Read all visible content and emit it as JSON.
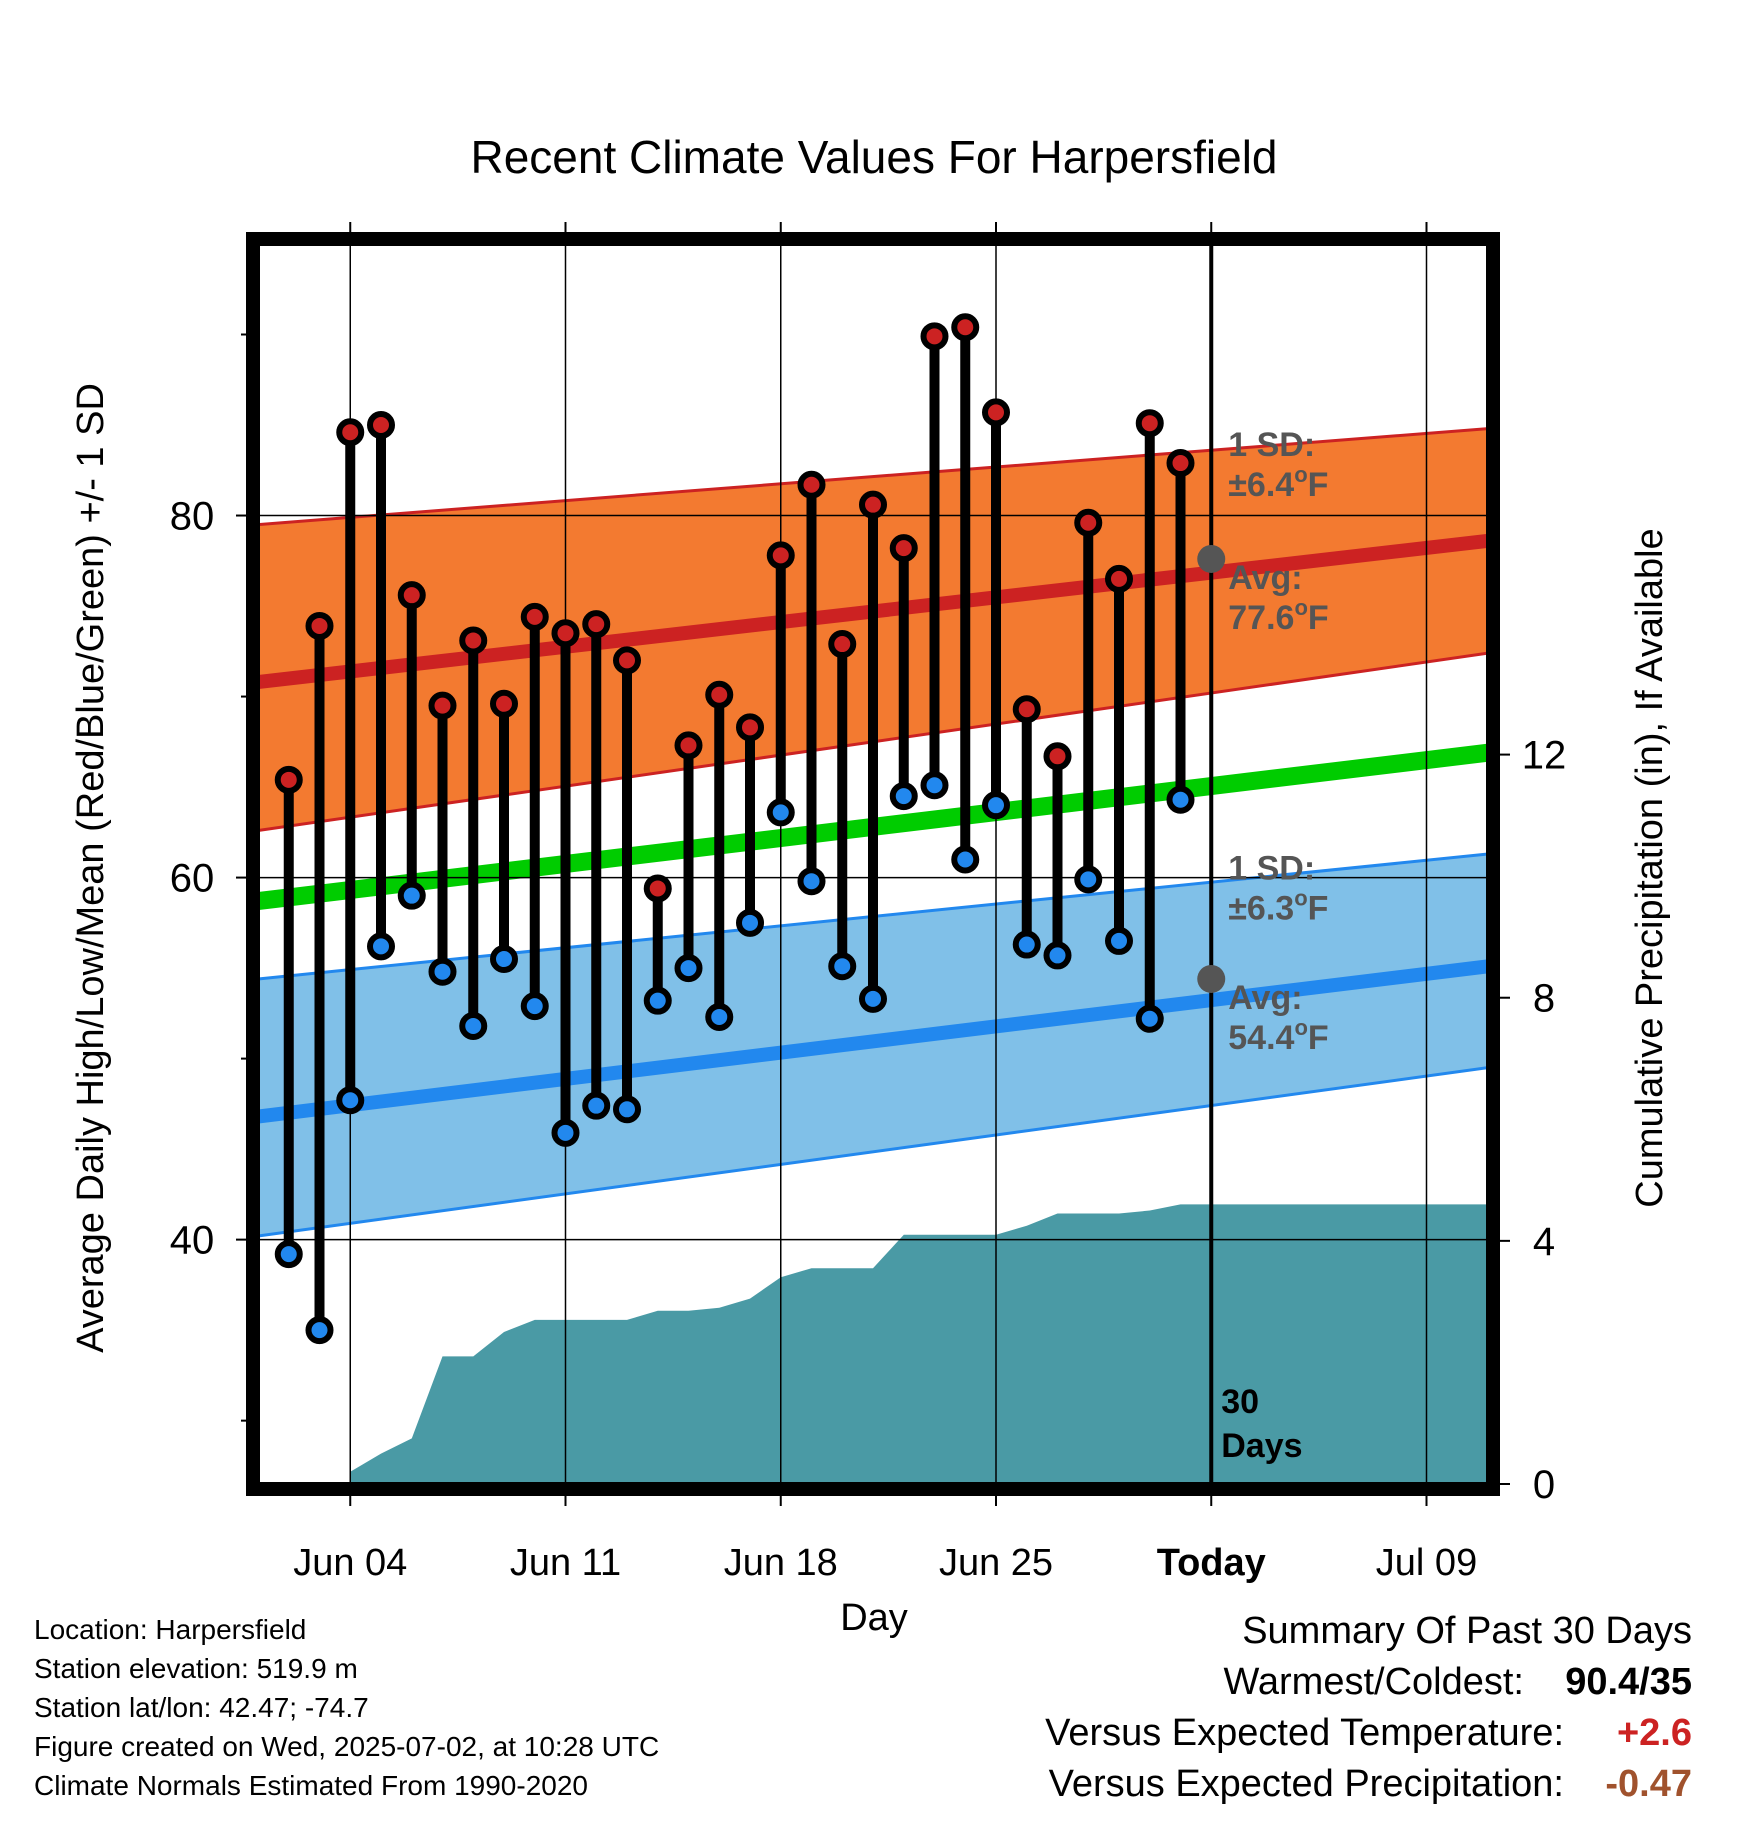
{
  "chart_data": {
    "type": "line",
    "title": "Recent Climate Values For Harpersfield",
    "xlabel": "Day",
    "ylabel": "Average Daily High/Low/Mean (Red/Blue/Green) +/- 1 SD",
    "y2label": "Cumulative Precipitation (in), If Available",
    "xlim": [
      "2025-06-01",
      "2025-07-11"
    ],
    "ylim": [
      26.5,
      95
    ],
    "y2lim": [
      0,
      20.4
    ],
    "x_ticks": [
      {
        "date": "2025-06-04",
        "label": "Jun 04"
      },
      {
        "date": "2025-06-11",
        "label": "Jun 11"
      },
      {
        "date": "2025-06-18",
        "label": "Jun 18"
      },
      {
        "date": "2025-06-25",
        "label": "Jun 25"
      },
      {
        "date": "2025-07-02",
        "label": "Today"
      },
      {
        "date": "2025-07-09",
        "label": "Jul 09"
      }
    ],
    "y_ticks": [
      40,
      60,
      80
    ],
    "y_minor_ticks": [
      30,
      50,
      70,
      90
    ],
    "y2_ticks": [
      0,
      4,
      8,
      12
    ],
    "grid": true,
    "today": {
      "date": "2025-07-02",
      "label": "30\nDays"
    },
    "series": [
      {
        "name": "High",
        "color": "#cc2222",
        "x": [
          "2025-06-02",
          "2025-06-03",
          "2025-06-04",
          "2025-06-05",
          "2025-06-06",
          "2025-06-07",
          "2025-06-08",
          "2025-06-09",
          "2025-06-10",
          "2025-06-11",
          "2025-06-12",
          "2025-06-13",
          "2025-06-14",
          "2025-06-15",
          "2025-06-16",
          "2025-06-17",
          "2025-06-18",
          "2025-06-19",
          "2025-06-20",
          "2025-06-21",
          "2025-06-22",
          "2025-06-23",
          "2025-06-24",
          "2025-06-25",
          "2025-06-26",
          "2025-06-27",
          "2025-06-28",
          "2025-06-29",
          "2025-06-30",
          "2025-07-01"
        ],
        "values": [
          65.4,
          73.9,
          84.6,
          85.0,
          75.6,
          69.5,
          73.1,
          69.6,
          74.4,
          73.5,
          74.0,
          72.0,
          59.4,
          67.3,
          70.1,
          68.3,
          77.8,
          81.7,
          72.9,
          80.6,
          78.2,
          89.9,
          90.4,
          85.7,
          69.3,
          66.7,
          79.6,
          76.5,
          85.1,
          82.9
        ]
      },
      {
        "name": "Low",
        "color": "#2288ee",
        "x": [
          "2025-06-02",
          "2025-06-03",
          "2025-06-04",
          "2025-06-05",
          "2025-06-06",
          "2025-06-07",
          "2025-06-08",
          "2025-06-09",
          "2025-06-10",
          "2025-06-11",
          "2025-06-12",
          "2025-06-13",
          "2025-06-14",
          "2025-06-15",
          "2025-06-16",
          "2025-06-17",
          "2025-06-18",
          "2025-06-19",
          "2025-06-20",
          "2025-06-21",
          "2025-06-22",
          "2025-06-23",
          "2025-06-24",
          "2025-06-25",
          "2025-06-26",
          "2025-06-27",
          "2025-06-28",
          "2025-06-29",
          "2025-06-30",
          "2025-07-01"
        ],
        "values": [
          39.2,
          35.0,
          47.7,
          56.2,
          59.0,
          54.8,
          51.8,
          55.5,
          52.9,
          45.9,
          47.4,
          47.2,
          53.2,
          55.0,
          52.3,
          57.5,
          63.6,
          59.8,
          55.1,
          53.3,
          64.5,
          65.1,
          61.0,
          64.0,
          56.3,
          55.7,
          59.9,
          56.5,
          52.2,
          64.3
        ]
      },
      {
        "name": "Normal High",
        "color": "#cc2222",
        "x": [
          "2025-06-01",
          "2025-07-11"
        ],
        "values": [
          70.8,
          78.6
        ],
        "sd_upper": [
          79.5,
          84.8
        ],
        "sd_lower": [
          62.6,
          72.4
        ],
        "band_color": "#f37a30"
      },
      {
        "name": "Normal Mean",
        "color": "#00cc00",
        "x": [
          "2025-06-01",
          "2025-07-11"
        ],
        "values": [
          58.7,
          66.9
        ]
      },
      {
        "name": "Normal Low",
        "color": "#2288ee",
        "x": [
          "2025-06-01",
          "2025-07-11"
        ],
        "values": [
          46.8,
          55.1
        ],
        "sd_upper": [
          54.4,
          61.3
        ],
        "sd_lower": [
          40.2,
          49.5
        ],
        "band_color": "#80c0e8"
      },
      {
        "name": "Cumulative Precipitation",
        "color": "#4a9aa5",
        "axis": "y2",
        "x": [
          "2025-06-04",
          "2025-06-05",
          "2025-06-06",
          "2025-06-07",
          "2025-06-08",
          "2025-06-09",
          "2025-06-10",
          "2025-06-11",
          "2025-06-12",
          "2025-06-13",
          "2025-06-14",
          "2025-06-15",
          "2025-06-16",
          "2025-06-17",
          "2025-06-18",
          "2025-06-19",
          "2025-06-20",
          "2025-06-21",
          "2025-06-22",
          "2025-06-23",
          "2025-06-24",
          "2025-06-25",
          "2025-06-26",
          "2025-06-27",
          "2025-06-28",
          "2025-06-29",
          "2025-06-30",
          "2025-07-01",
          "2025-07-02",
          "2025-07-11"
        ],
        "values": [
          0.2,
          0.5,
          0.75,
          2.1,
          2.1,
          2.5,
          2.7,
          2.7,
          2.7,
          2.7,
          2.85,
          2.85,
          2.9,
          3.05,
          3.4,
          3.55,
          3.55,
          3.55,
          4.1,
          4.1,
          4.1,
          4.1,
          4.25,
          4.45,
          4.45,
          4.45,
          4.5,
          4.6,
          4.6,
          4.6
        ]
      }
    ],
    "annotations": [
      {
        "id": "high",
        "value": 77.6,
        "sd_text": "±6.4",
        "avg_text": "77.6"
      },
      {
        "id": "low",
        "value": 54.4,
        "sd_text": "±6.3",
        "avg_text": "54.4"
      }
    ],
    "annotation_labels": {
      "sd": "1 SD:",
      "avg": "Avg:",
      "deg": "o",
      "unit": "F"
    }
  },
  "footer": {
    "location": "Location: Harpersfield",
    "elevation": "Station elevation: 519.9 m",
    "latlon": "Station lat/lon: 42.47; -74.7",
    "created": "Figure created on Wed, 2025-07-02, at 10:28 UTC",
    "normals": "Climate Normals Estimated From 1990-2020"
  },
  "summary": {
    "title": "Summary Of Past 30 Days",
    "warmest_label": "Warmest/Coldest:",
    "warmest_value": "90.4/35",
    "temp_label": "Versus Expected Temperature:",
    "temp_value": "+2.6",
    "temp_color": "#cc2222",
    "precip_label": "Versus Expected Precipitation:",
    "precip_value": "-0.47",
    "precip_color": "#a0522d"
  }
}
